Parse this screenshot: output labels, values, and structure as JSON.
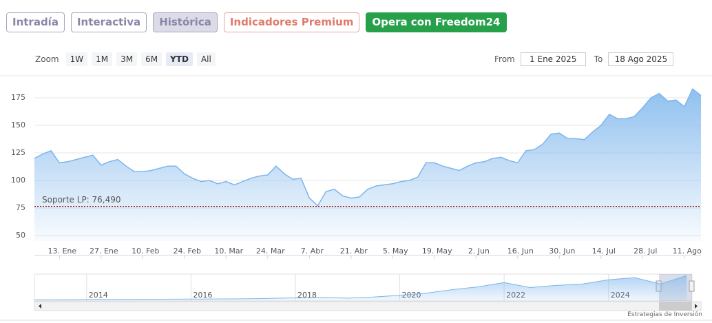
{
  "tabs": [
    "Intradía",
    "Interactiva",
    "Histórica",
    "Indicadores Premium",
    "Opera con Freedom24"
  ],
  "zoom": {
    "label": "Zoom",
    "buttons": [
      "1W",
      "1M",
      "3M",
      "6M",
      "YTD",
      "All"
    ]
  },
  "range": {
    "from_label": "From",
    "from": "1 Ene 2025",
    "to_label": "To",
    "to": "18 Ago 2025"
  },
  "footer": "Estrategias de Inversión",
  "chart_data": [
    {
      "type": "area",
      "color": "#7cb5ec",
      "categories": [
        null,
        null,
        null,
        "13. Ene",
        null,
        null,
        null,
        null,
        "27. Ene",
        null,
        null,
        null,
        null,
        "10. Feb",
        null,
        null,
        null,
        null,
        "24. Feb",
        null,
        null,
        null,
        null,
        "10. Mar",
        null,
        null,
        null,
        null,
        "24. Mar",
        null,
        null,
        null,
        null,
        "7. Abr",
        null,
        null,
        null,
        null,
        "21. Abr",
        null,
        null,
        null,
        null,
        "5. May",
        null,
        null,
        null,
        null,
        "19. May",
        null,
        null,
        null,
        null,
        "2. Jun",
        null,
        null,
        null,
        null,
        "16. Jun",
        null,
        null,
        null,
        null,
        "30. Jun",
        null,
        null,
        null,
        null,
        "14. Jul",
        null,
        null,
        null,
        null,
        "28. Jul",
        null,
        null,
        null,
        null,
        "11. Ago",
        null,
        null
      ],
      "values": [
        120,
        124,
        127,
        116,
        117,
        119,
        121,
        123,
        114,
        117,
        119,
        113,
        108,
        108,
        109,
        111,
        113,
        113,
        106,
        102,
        99,
        100,
        97,
        99,
        96,
        99,
        102,
        104,
        105,
        113,
        106,
        101,
        102,
        84,
        77,
        90,
        92,
        86,
        84,
        85,
        92,
        95,
        96,
        97,
        99,
        100,
        103,
        116,
        116,
        113,
        111,
        109,
        113,
        116,
        117,
        120,
        121,
        118,
        116,
        127,
        128,
        133,
        142,
        143,
        138,
        138,
        137,
        144,
        150,
        160,
        156,
        156,
        158,
        166,
        175,
        179,
        172,
        173,
        167,
        183,
        177
      ],
      "ylim": [
        45,
        195
      ],
      "yticks": [
        50,
        75,
        100,
        125,
        150,
        175
      ],
      "grid": true,
      "annotation": {
        "label": "Soporte LP: 76,490",
        "value": 76.49,
        "color": "#8b0000"
      }
    },
    {
      "type": "area",
      "color": "#7cb5ec",
      "x": [
        2013,
        2013.5,
        2014,
        2014.5,
        2015,
        2015.5,
        2016,
        2016.5,
        2017,
        2017.5,
        2018,
        2018.5,
        2019,
        2019.5,
        2020,
        2020.5,
        2021,
        2021.5,
        2022,
        2022.5,
        2023,
        2023.5,
        2024,
        2024.5,
        2025,
        2025.5
      ],
      "values": [
        8,
        9,
        10,
        11,
        12,
        12,
        13,
        14,
        15,
        18,
        22,
        25,
        20,
        28,
        40,
        55,
        80,
        100,
        130,
        95,
        110,
        120,
        150,
        165,
        120,
        180
      ],
      "xlim": [
        2013,
        2025.6
      ],
      "ylim": [
        0,
        190
      ],
      "xticks": [
        2014,
        2016,
        2018,
        2020,
        2022,
        2024
      ]
    }
  ]
}
